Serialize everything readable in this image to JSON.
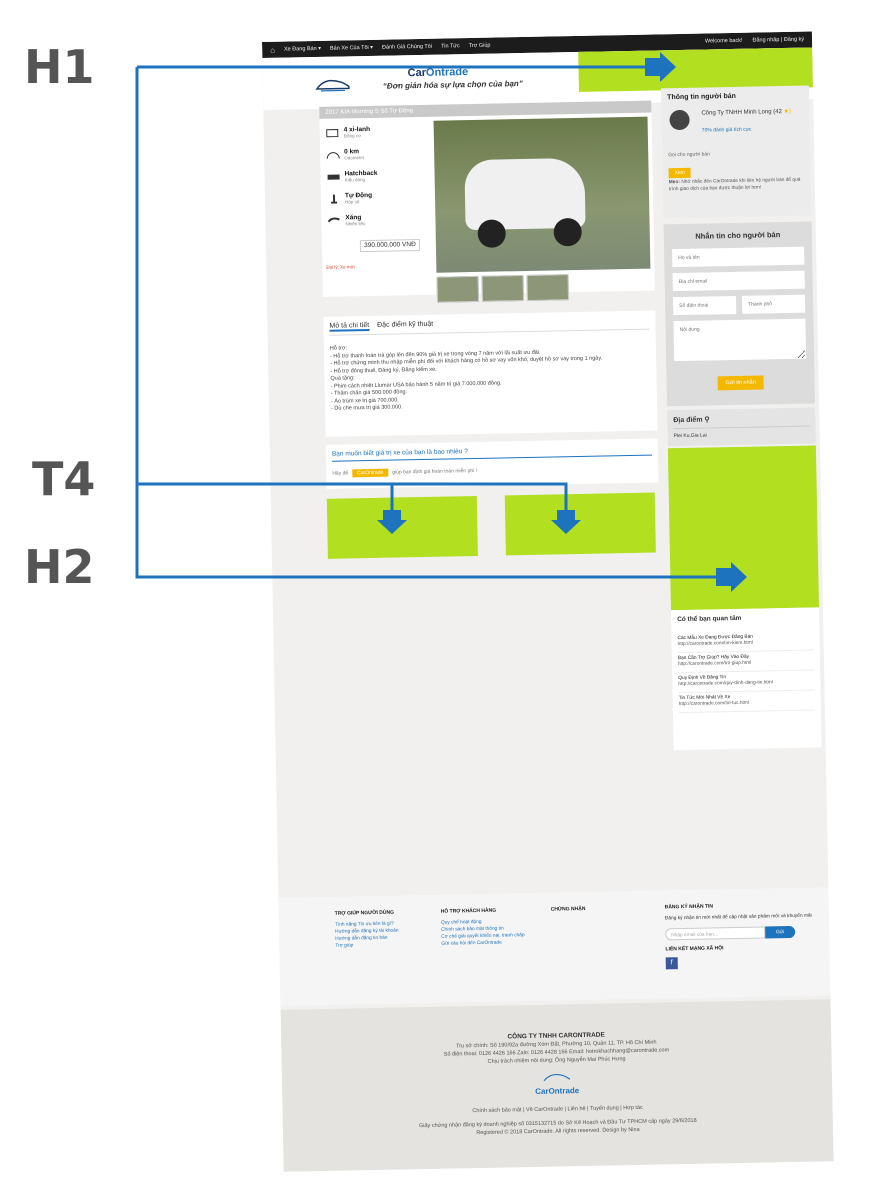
{
  "labels": {
    "h1": "H1",
    "t4": "T4",
    "h2": "H2"
  },
  "topbar": {
    "nav": [
      "Xe Đang Bán ▾",
      "Bán Xe Của Tôi ▾",
      "Đánh Giá Chúng Tôi",
      "Tin Tức",
      "Trợ Giúp"
    ],
    "welcome": "Welcome back!",
    "login": "Đăng nhập | Đăng ký"
  },
  "header": {
    "logo_a": "Car",
    "logo_b": "Ontrade",
    "tagline": "“Đơn giản hóa sự lựa chọn của bạn”"
  },
  "listing": {
    "title": "2017 KIA Morning S Số Tự Động",
    "specs": [
      {
        "value": "4 xi-lanh",
        "label": "Động cơ"
      },
      {
        "value": "0 km",
        "label": "Odometer"
      },
      {
        "value": "Hatchback",
        "label": "Kiểu dáng"
      },
      {
        "value": "Tự Động",
        "label": "Hộp số"
      },
      {
        "value": "Xăng",
        "label": "Nhiên liệu"
      }
    ],
    "price": "390.000.000 VNĐ",
    "dealer": "Đại lý: Xe mới"
  },
  "description": {
    "tab_active": "Mô tả chi tiết",
    "tab_other": "Đặc điểm kỹ thuật",
    "lines": [
      "Hỗ trợ:",
      "- Hỗ trợ thanh toán trả góp lên đến 90% giá trị xe trong vòng 7 năm với lãi suất ưu đãi.",
      "- Hỗ trợ chứng minh thu nhập miễn phí đối với khách hàng có hồ sơ vay vốn khó, duyệt hồ sơ vay trong 1 ngày.",
      "- Hỗ trợ đóng thuế, Đăng ký, Đăng kiểm xe.",
      "Quà tặng:",
      "- Phim cách nhiệt Llumar USA bảo hành 5 năm trị giá 7.000.000 đồng.",
      "- Thảm chân giá 500.000 đồng.",
      "- Áo trùm xe trị giá 700.000.",
      "- Dù che mưa trị giá 300.000."
    ]
  },
  "valuation": {
    "question": "Bạn muốn biết giá trị xe của bạn là bao nhiêu ?",
    "pre": "Hãy để",
    "keyword": "CarOntrade",
    "post": "giúp bạn định giá hoàn toàn miễn phí !"
  },
  "seller": {
    "heading": "Thông tin người bán",
    "name": "Công Ty TNHH Minh Long (42",
    "star": "★)",
    "rating": "70% đánh giá tích cực",
    "call": "Gọi cho người bán",
    "view_btn": "Xem",
    "tip_bold": "Mẹo:",
    "tip": "Nhớ nhắc đến CarOntrade khi liên hệ người bán để quá trình giao dịch của bạn được thuận lợi hơn!"
  },
  "message": {
    "heading": "Nhắn tin cho người bán",
    "name_ph": "Họ và tên",
    "email_ph": "Địa chỉ email",
    "phone_ph": "Số điện thoại",
    "city_ph": "Thành phố",
    "content_ph": "Nội dung",
    "send": "Gửi tin nhắn"
  },
  "location": {
    "heading": "Địa điểm ⚲",
    "value": "Plei Ku,Gia Lai"
  },
  "interest": {
    "heading": "Có thể bạn quan tâm",
    "items": [
      {
        "title": "Các Mẫu Xe Đang Được Đăng Bán",
        "url": "http://carontrade.com/tim-kiem.html"
      },
      {
        "title": "Bạn Cần Trợ Giúp? Hãy Vào Đây",
        "url": "http://carontrade.com/tro-giup.html"
      },
      {
        "title": "Quy Định Về Đăng Tin",
        "url": "http://carontrade.com/quy-dinh-dang-tin.html"
      },
      {
        "title": "Tin Tức Mới Nhất Về Xe",
        "url": "http://carontrade.com/tin-tuc.html"
      }
    ]
  },
  "footer": {
    "col1_title": "TRỢ GIÚP NGƯỜI DÙNG",
    "col1": [
      "Tính năng Tin ưu tiên là gì?",
      "Hướng dẫn đăng ký tài khoản",
      "Hướng dẫn đăng tin bán",
      "Trợ giúp"
    ],
    "col2_title": "HỖ TRỢ KHÁCH HÀNG",
    "col2": [
      "Quy chế hoạt động",
      "Chính sách bảo mật thông tin",
      "Cơ chế giải quyết khiếu nại, tranh chấp",
      "Gửi câu hỏi đến CarOntrade"
    ],
    "col3_title": "CHỨNG NHẬN",
    "col4_title": "ĐĂNG KÝ NHẬN TIN",
    "col4_text": "Đăng ký nhận tin mới nhất để cập nhật sản phẩm mới và khuyến mãi",
    "email_ph": "Nhập email của bạn...",
    "send": "Gửi",
    "social_title": "LIÊN KẾT MẠNG XÃ HỘI",
    "fb": "f"
  },
  "bottom": {
    "company": "CÔNG TY TNHH CARONTRADE",
    "address": "Trụ sở chính: Số 190/92a đường Xóm Đất, Phường 10, Quận 11, TP. Hồ Chí Minh",
    "contact": "Số điện thoại: 0126 4426 166   Zalo: 0126 4428 166   Email: hotrokhachhang@carontrade.com",
    "manager": "Chịu trách nhiệm nội dung: Ông Nguyễn Mai Phúc Hưng",
    "brand": "CarOntrade",
    "links": "Chính sách bảo mật  |  Về CarOntrade  |  Liên hệ  |  Tuyển dụng  |  Hợp tác",
    "license": "Giấy chứng nhận đăng ký doanh nghiệp số 0315132715 do Sở Kế Hoạch và Đầu Tư TPHCM cấp ngày 29/6/2018",
    "copyright": "Registered © 2018 CarOntrade. All rights reserved. Design by Nina"
  },
  "colors": {
    "ad_green": "#b2df1f",
    "accent_blue": "#1e73be",
    "button_yellow": "#f5b800",
    "arrow_blue": "#1e73be"
  }
}
